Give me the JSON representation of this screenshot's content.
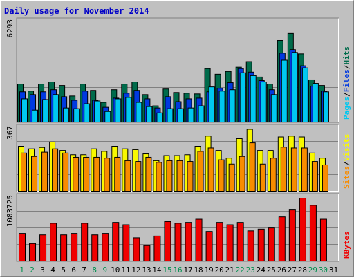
{
  "chart_data": {
    "type": "bar",
    "title": "Daily usage for November 2014",
    "categories": [
      "1",
      "2",
      "3",
      "4",
      "5",
      "6",
      "7",
      "8",
      "9",
      "10",
      "11",
      "12",
      "13",
      "14",
      "15",
      "16",
      "17",
      "18",
      "19",
      "20",
      "21",
      "22",
      "23",
      "24",
      "25",
      "26",
      "27",
      "28",
      "29",
      "30",
      "31"
    ],
    "weekend_days": [
      "1",
      "2",
      "8",
      "9",
      "15",
      "16",
      "22",
      "23",
      "29",
      "30"
    ],
    "panels": [
      {
        "name": "hits-files-pages",
        "max_label": "6293",
        "ylim": [
          0,
          6293
        ],
        "legend": [
          "Pages",
          "/",
          "Files",
          "/",
          "Hits"
        ],
        "series": [
          {
            "name": "Hits",
            "color": "#006b4b",
            "values": [
              2700,
              2200,
              2700,
              2850,
              2600,
              1850,
              2700,
              2250,
              1400,
              2300,
              2700,
              2850,
              1950,
              1150,
              2350,
              2100,
              2050,
              2000,
              3800,
              3400,
              3600,
              3900,
              4300,
              3200,
              2700,
              5800,
              6300,
              4850,
              3000,
              2600,
              0
            ]
          },
          {
            "name": "Files",
            "color": "#0039e0",
            "values": [
              2150,
              1950,
              2150,
              2300,
              1800,
              1550,
              2200,
              1550,
              1050,
              1700,
              2050,
              2250,
              1650,
              1000,
              1800,
              1450,
              1650,
              1700,
              2150,
              2400,
              2800,
              3800,
              3550,
              2950,
              2300,
              4900,
              5150,
              4000,
              2550,
              2200,
              0
            ]
          },
          {
            "name": "Pages",
            "color": "#00c8f0",
            "values": [
              1650,
              850,
              1600,
              1950,
              1000,
              950,
              1300,
              1500,
              750,
              1650,
              1750,
              1400,
              1100,
              650,
              950,
              950,
              1000,
              1150,
              2500,
              2200,
              2300,
              3500,
              3300,
              2850,
              1950,
              4400,
              4950,
              3850,
              2750,
              2150,
              0
            ]
          }
        ]
      },
      {
        "name": "visits-sites",
        "max_label": "367",
        "ylim": [
          0,
          367
        ],
        "legend": [
          "Sites",
          "/",
          "Visits"
        ],
        "series": [
          {
            "name": "Visits",
            "color": "#f8f800",
            "values": [
              265,
              250,
              258,
              290,
              240,
              215,
              215,
              250,
              235,
              265,
              250,
              245,
              220,
              180,
              210,
              210,
              215,
              265,
              325,
              240,
              195,
              310,
              365,
              240,
              240,
              320,
              325,
              320,
              225,
              195,
              0
            ]
          },
          {
            "name": "Sites",
            "color": "#f88c00",
            "values": [
              225,
              205,
              230,
              250,
              225,
              200,
              200,
              200,
              195,
              200,
              180,
              175,
              200,
              170,
              180,
              180,
              175,
              235,
              255,
              185,
              160,
              205,
              285,
              160,
              195,
              260,
              255,
              255,
              175,
              155,
              0
            ]
          }
        ]
      },
      {
        "name": "kbytes",
        "max_label": "1083725",
        "ylim": [
          0,
          1083725
        ],
        "legend": [
          "KBytes"
        ],
        "series": [
          {
            "name": "KBytes",
            "color": "#f00000",
            "values": [
              475000,
              300000,
              450000,
              650000,
              450000,
              475000,
              650000,
              450000,
              475000,
              665000,
              625000,
              400000,
              265000,
              430000,
              680000,
              650000,
              665000,
              720000,
              510000,
              665000,
              625000,
              665000,
              520000,
              550000,
              570000,
              760000,
              880000,
              1083725,
              960000,
              720000,
              0
            ]
          }
        ]
      }
    ],
    "colors": {
      "background": "#c0c0c0",
      "panel_light": "#ffffff",
      "panel_shadow": "#808080",
      "grid": "#808080",
      "title": "#0000c8",
      "weekday_label": "#000000",
      "weekend_label": "#009050",
      "bar_outline": "#000000"
    }
  }
}
